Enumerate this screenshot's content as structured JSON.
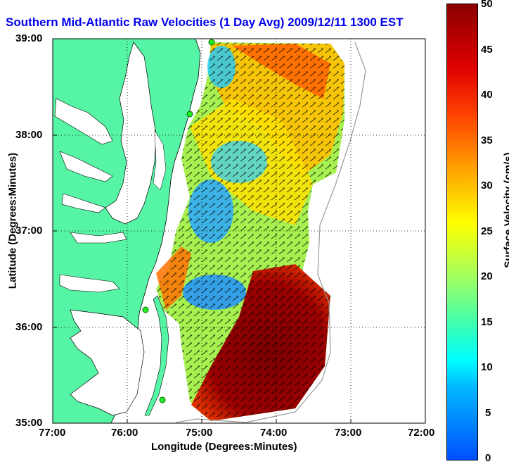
{
  "title": "Southern Mid-Atlantic Raw Velocities (1 Day Avg) 2009/12/11 1300 EST",
  "x_axis": {
    "label": "Longitude (Degrees:Minutes)",
    "ticks": [
      "77:00",
      "76:00",
      "75:00",
      "74:00",
      "73:00",
      "72:00"
    ]
  },
  "y_axis": {
    "label": "Latitude (Degrees:Minutes)",
    "ticks": [
      "39:00",
      "38:00",
      "37:00",
      "36:00",
      "35:00"
    ]
  },
  "colorbar": {
    "label": "Surface Velocity (cm/s)",
    "ticks": [
      "50",
      "45",
      "40",
      "35",
      "30",
      "25",
      "20",
      "15",
      "10",
      "5",
      "0"
    ],
    "min": 0,
    "max": 50
  },
  "colors": {
    "land": "#55f5a5",
    "title": "#0000ee",
    "station": "#22ee22"
  },
  "stations": [
    "station-1",
    "station-2",
    "station-3",
    "station-4"
  ]
}
